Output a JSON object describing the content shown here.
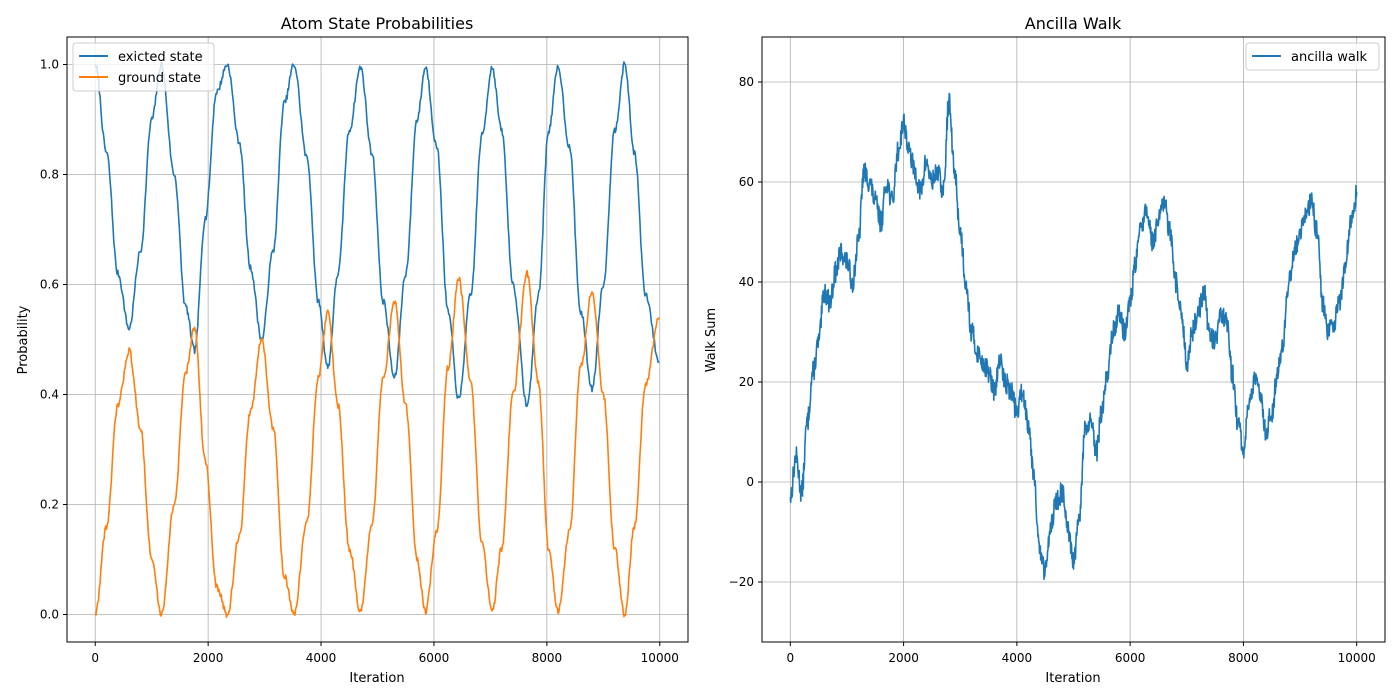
{
  "colors": {
    "series1": "#1f77b4",
    "series2": "#ff7f0e",
    "grid": "#b0b0b0"
  },
  "chart_data": [
    {
      "type": "line",
      "title": "Atom State Probabilities",
      "xlabel": "Iteration",
      "ylabel": "Probability",
      "xlim": [
        -500,
        10500
      ],
      "ylim": [
        -0.05,
        1.05
      ],
      "xticks": [
        0,
        2000,
        4000,
        6000,
        8000,
        10000
      ],
      "yticks": [
        0.0,
        0.2,
        0.4,
        0.6,
        0.8,
        1.0
      ],
      "ytick_labels": [
        "0.0",
        "0.2",
        "0.4",
        "0.6",
        "0.8",
        "1.0"
      ],
      "grid": true,
      "legend_position": "upper-left",
      "series": [
        {
          "name": "exicted state",
          "x": [
            0,
            200,
            400,
            600,
            800,
            1000,
            1170,
            1400,
            1600,
            1760,
            1950,
            2150,
            2340,
            2550,
            2750,
            2950,
            3150,
            3350,
            3520,
            3750,
            3950,
            4120,
            4300,
            4500,
            4700,
            4900,
            5100,
            5300,
            5500,
            5700,
            5850,
            6050,
            6250,
            6440,
            6650,
            6850,
            7030,
            7200,
            7400,
            7650,
            7850,
            8030,
            8200,
            8400,
            8600,
            8800,
            9000,
            9200,
            9380,
            9550,
            9750,
            9990
          ],
          "y": [
            1.0,
            0.84,
            0.62,
            0.52,
            0.66,
            0.9,
            1.0,
            0.8,
            0.56,
            0.48,
            0.72,
            0.95,
            1.0,
            0.86,
            0.63,
            0.5,
            0.66,
            0.93,
            1.0,
            0.83,
            0.57,
            0.45,
            0.62,
            0.88,
            0.995,
            0.84,
            0.57,
            0.43,
            0.62,
            0.9,
            0.995,
            0.85,
            0.55,
            0.39,
            0.58,
            0.87,
            0.995,
            0.88,
            0.6,
            0.38,
            0.58,
            0.88,
            0.995,
            0.85,
            0.55,
            0.41,
            0.6,
            0.88,
            1.0,
            0.84,
            0.58,
            0.46
          ]
        },
        {
          "name": "ground state",
          "x": [
            0,
            200,
            400,
            600,
            800,
            1000,
            1170,
            1400,
            1600,
            1760,
            1950,
            2150,
            2340,
            2550,
            2750,
            2950,
            3150,
            3350,
            3520,
            3750,
            3950,
            4120,
            4300,
            4500,
            4700,
            4900,
            5100,
            5300,
            5500,
            5700,
            5850,
            6050,
            6250,
            6440,
            6650,
            6850,
            7030,
            7200,
            7400,
            7650,
            7850,
            8030,
            8200,
            8400,
            8600,
            8800,
            9000,
            9200,
            9380,
            9550,
            9750,
            9990
          ],
          "y": [
            0.0,
            0.16,
            0.38,
            0.48,
            0.34,
            0.1,
            0.0,
            0.2,
            0.44,
            0.52,
            0.28,
            0.05,
            0.0,
            0.14,
            0.37,
            0.5,
            0.34,
            0.07,
            0.0,
            0.17,
            0.43,
            0.55,
            0.38,
            0.12,
            0.005,
            0.16,
            0.43,
            0.57,
            0.38,
            0.1,
            0.005,
            0.15,
            0.45,
            0.61,
            0.42,
            0.13,
            0.005,
            0.12,
            0.4,
            0.62,
            0.42,
            0.12,
            0.005,
            0.15,
            0.45,
            0.59,
            0.4,
            0.12,
            0.0,
            0.16,
            0.42,
            0.54
          ]
        }
      ]
    },
    {
      "type": "line",
      "title": "Ancilla Walk",
      "xlabel": "Iteration",
      "ylabel": "Walk Sum",
      "xlim": [
        -500,
        10500
      ],
      "ylim": [
        -32,
        89
      ],
      "xticks": [
        0,
        2000,
        4000,
        6000,
        8000,
        10000
      ],
      "yticks": [
        -20,
        0,
        20,
        40,
        60,
        80
      ],
      "ytick_labels": [
        "−20",
        "0",
        "20",
        "40",
        "60",
        "80"
      ],
      "grid": true,
      "legend_position": "upper-right",
      "series": [
        {
          "name": "ancilla walk",
          "x": [
            0,
            100,
            200,
            300,
            400,
            500,
            600,
            700,
            800,
            900,
            1000,
            1100,
            1200,
            1300,
            1400,
            1500,
            1600,
            1700,
            1800,
            1900,
            2000,
            2100,
            2200,
            2300,
            2400,
            2500,
            2600,
            2700,
            2800,
            2900,
            3000,
            3100,
            3200,
            3300,
            3400,
            3500,
            3600,
            3700,
            3800,
            3900,
            4000,
            4100,
            4200,
            4300,
            4400,
            4500,
            4600,
            4700,
            4800,
            4900,
            5000,
            5100,
            5200,
            5300,
            5400,
            5500,
            5600,
            5700,
            5800,
            5900,
            6000,
            6100,
            6200,
            6300,
            6400,
            6500,
            6600,
            6700,
            6800,
            6900,
            7000,
            7100,
            7200,
            7300,
            7400,
            7500,
            7600,
            7700,
            7800,
            7900,
            8000,
            8100,
            8200,
            8300,
            8400,
            8500,
            8600,
            8700,
            8800,
            8900,
            9000,
            9100,
            9200,
            9300,
            9400,
            9500,
            9600,
            9700,
            9800,
            9900,
            10000
          ],
          "y": [
            -3,
            5,
            -2,
            12,
            22,
            28,
            38,
            36,
            42,
            46,
            44,
            40,
            48,
            62,
            60,
            56,
            52,
            60,
            56,
            66,
            72,
            66,
            62,
            58,
            64,
            60,
            62,
            58,
            76,
            62,
            50,
            40,
            30,
            26,
            24,
            22,
            18,
            24,
            20,
            18,
            14,
            18,
            12,
            2,
            -14,
            -18,
            -8,
            -4,
            -2,
            -10,
            -16,
            -8,
            10,
            12,
            6,
            14,
            22,
            30,
            34,
            30,
            36,
            44,
            52,
            54,
            48,
            52,
            56,
            50,
            40,
            34,
            24,
            30,
            34,
            38,
            30,
            28,
            34,
            32,
            22,
            12,
            6,
            16,
            20,
            18,
            10,
            14,
            22,
            28,
            40,
            46,
            50,
            54,
            56,
            50,
            36,
            30,
            32,
            36,
            44,
            52,
            58
          ]
        }
      ]
    }
  ]
}
